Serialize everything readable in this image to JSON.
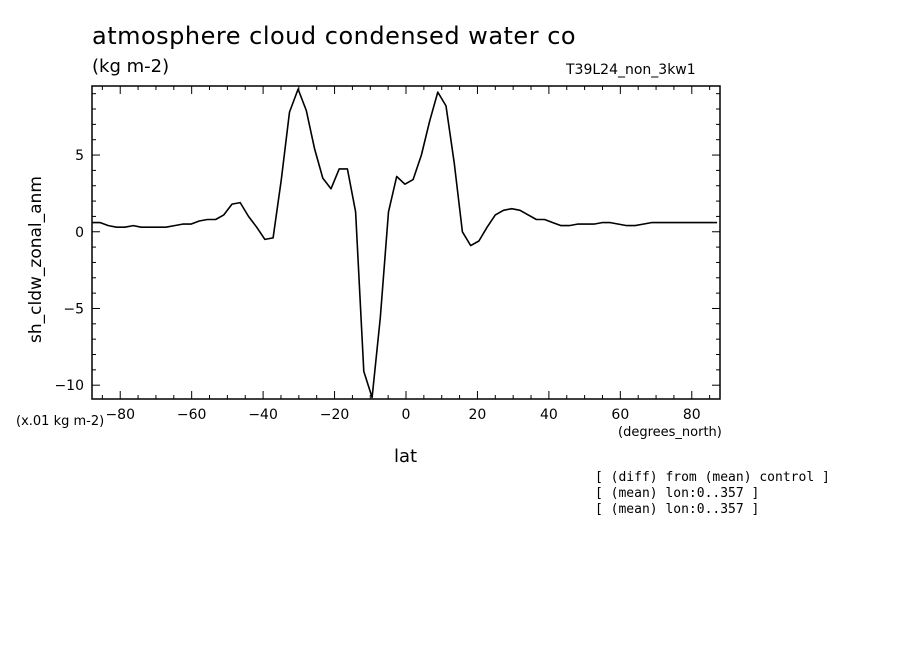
{
  "header": {
    "title": "atmosphere cloud condensed water co",
    "units": "(kg m-2)",
    "run_id": "T39L24_non_3kw1"
  },
  "axes_text": {
    "y_scale_note": "(x.01 kg m-2)",
    "x_units": "(degrees_north)"
  },
  "notes": [
    "[ (diff) from (mean) control ]",
    "[ (mean) lon:0..357 ]",
    "[ (mean) lon:0..357 ]"
  ],
  "chart_data": {
    "type": "line",
    "xlabel": "lat",
    "ylabel": "sh_cldw_zonal_anm",
    "xlim": [
      -87.9,
      87.9
    ],
    "ylim": [
      -10.9,
      9.5
    ],
    "xticks": [
      -80,
      -60,
      -40,
      -20,
      0,
      20,
      40,
      60,
      80
    ],
    "yticks": [
      -10,
      -5,
      0,
      5
    ],
    "xtick_labels": [
      "−80",
      "−60",
      "−40",
      "−20",
      "0",
      "20",
      "40",
      "60",
      "80"
    ],
    "ytick_labels": [
      "−10",
      "−5",
      "0",
      "5"
    ],
    "grid": false,
    "series": [
      {
        "x": [
          -87.9,
          -85.6,
          -83.3,
          -81.0,
          -78.7,
          -76.4,
          -74.1,
          -71.8,
          -69.5,
          -67.2,
          -64.8,
          -62.5,
          -60.2,
          -57.9,
          -55.6,
          -53.3,
          -51.0,
          -48.7,
          -46.4,
          -44.1,
          -41.8,
          -39.5,
          -37.2,
          -34.9,
          -32.6,
          -30.2,
          -27.9,
          -25.6,
          -23.3,
          -21.0,
          -18.7,
          -16.4,
          -14.1,
          -11.8,
          -9.5,
          -7.2,
          -4.9,
          -2.6,
          -0.3,
          2.0,
          4.3,
          6.6,
          8.9,
          11.2,
          13.5,
          15.8,
          18.1,
          20.4,
          22.7,
          25.0,
          27.3,
          29.6,
          31.9,
          34.2,
          36.5,
          38.8,
          41.1,
          43.4,
          45.7,
          48.0,
          50.3,
          52.6,
          54.9,
          57.2,
          59.5,
          61.8,
          64.1,
          66.4,
          68.7,
          71.0,
          73.3,
          75.6,
          77.9,
          80.2,
          82.5,
          84.8,
          87.1
        ],
        "values": [
          0.6,
          0.6,
          0.4,
          0.3,
          0.3,
          0.4,
          0.3,
          0.3,
          0.3,
          0.3,
          0.4,
          0.5,
          0.5,
          0.7,
          0.8,
          0.8,
          1.1,
          1.8,
          1.9,
          1.0,
          0.3,
          -0.5,
          -0.4,
          3.4,
          7.8,
          9.3,
          7.9,
          5.4,
          3.5,
          2.8,
          4.1,
          4.1,
          1.3,
          -9.1,
          -10.8,
          -5.6,
          1.3,
          3.6,
          3.1,
          3.4,
          5.0,
          7.2,
          9.1,
          8.2,
          4.5,
          0.0,
          -0.9,
          -0.6,
          0.3,
          1.1,
          1.4,
          1.5,
          1.4,
          1.1,
          0.8,
          0.8,
          0.6,
          0.4,
          0.4,
          0.5,
          0.5,
          0.5,
          0.6,
          0.6,
          0.5,
          0.4,
          0.4,
          0.5,
          0.6,
          0.6,
          0.6,
          0.6,
          0.6,
          0.6,
          0.6,
          0.6,
          0.6
        ]
      }
    ]
  }
}
